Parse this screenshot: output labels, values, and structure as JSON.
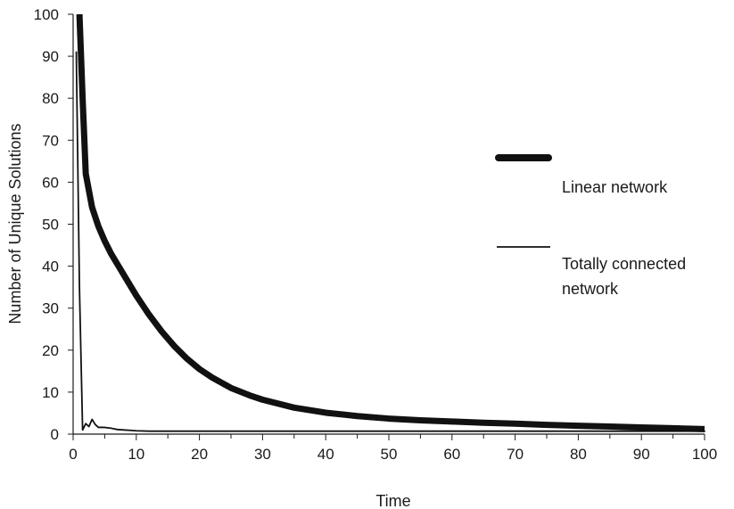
{
  "chart_data": {
    "type": "line",
    "xlabel": "Time",
    "ylabel": "Number of Unique Solutions",
    "xlim": [
      0,
      100
    ],
    "ylim": [
      0,
      100
    ],
    "xticks": [
      0,
      10,
      20,
      30,
      40,
      50,
      60,
      70,
      80,
      90,
      100
    ],
    "yticks": [
      0,
      10,
      20,
      30,
      40,
      50,
      60,
      70,
      80,
      90,
      100
    ],
    "grid": false,
    "legend_position": "right",
    "series": [
      {
        "name": "Linear network",
        "color": "#111111",
        "style": "thick",
        "x": [
          1,
          1.5,
          2,
          3,
          4,
          5,
          6,
          7,
          8,
          9,
          10,
          12,
          14,
          16,
          18,
          20,
          22,
          25,
          28,
          30,
          35,
          40,
          45,
          50,
          55,
          60,
          65,
          70,
          75,
          80,
          85,
          90,
          95,
          100
        ],
        "y": [
          100,
          80,
          62,
          54,
          49.5,
          46,
          43,
          40.5,
          38,
          35.5,
          33,
          28.5,
          24.5,
          21,
          18,
          15.5,
          13.5,
          11,
          9.2,
          8.2,
          6.3,
          5.1,
          4.3,
          3.7,
          3.3,
          3.0,
          2.7,
          2.5,
          2.2,
          2.0,
          1.8,
          1.6,
          1.4,
          1.2
        ]
      },
      {
        "name": "Totally connected network",
        "line_break": true,
        "color": "#111111",
        "style": "thin",
        "x": [
          0.5,
          1,
          1.5,
          2,
          2.5,
          3,
          3.5,
          4,
          5,
          6,
          7,
          8,
          9,
          10,
          12,
          15,
          20,
          30,
          40,
          50,
          60,
          70,
          80,
          90,
          100
        ],
        "y": [
          91,
          35,
          1,
          2.5,
          1.8,
          3.5,
          2.3,
          1.6,
          1.6,
          1.4,
          1.1,
          1.0,
          0.9,
          0.8,
          0.7,
          0.7,
          0.7,
          0.7,
          0.7,
          0.7,
          0.7,
          0.7,
          0.7,
          0.7,
          0.7
        ]
      }
    ]
  }
}
